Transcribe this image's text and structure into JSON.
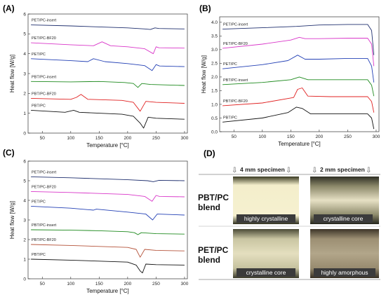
{
  "chart_data": [
    {
      "panel_label": "(A)",
      "type": "line",
      "xlabel": "Temperature [°C]",
      "ylabel": "Heat flow [W/g]",
      "xlim": [
        25,
        305
      ],
      "ylim": [
        0,
        6
      ],
      "xticks": [
        50,
        100,
        150,
        200,
        250,
        300
      ],
      "yticks": [
        0,
        1,
        2,
        3,
        4,
        5,
        6
      ],
      "series": [
        {
          "name": "PET/PC-insert",
          "color": "#1f2f6e",
          "x": [
            30,
            100,
            150,
            200,
            230,
            240,
            248,
            255,
            300
          ],
          "y": [
            5.45,
            5.4,
            5.35,
            5.3,
            5.25,
            5.22,
            5.3,
            5.27,
            5.25
          ]
        },
        {
          "name": "PET/PC-BF20",
          "color": "#d936c9",
          "x": [
            30,
            100,
            140,
            155,
            170,
            200,
            230,
            245,
            250,
            255,
            300
          ],
          "y": [
            4.55,
            4.45,
            4.4,
            4.6,
            4.4,
            4.35,
            4.25,
            4.0,
            4.35,
            4.3,
            4.28
          ]
        },
        {
          "name": "PET/PC",
          "color": "#2340b5",
          "x": [
            30,
            100,
            130,
            140,
            160,
            200,
            230,
            243,
            250,
            256,
            300
          ],
          "y": [
            3.75,
            3.65,
            3.6,
            3.75,
            3.6,
            3.5,
            3.4,
            3.15,
            3.45,
            3.38,
            3.35
          ]
        },
        {
          "name": "PBT/PC-insert",
          "color": "#1e8a1e",
          "x": [
            30,
            100,
            150,
            195,
            210,
            218,
            225,
            240,
            300
          ],
          "y": [
            2.6,
            2.58,
            2.6,
            2.55,
            2.5,
            2.3,
            2.5,
            2.45,
            2.4
          ]
        },
        {
          "name": "PBT/PC-BF20",
          "color": "#e02020",
          "x": [
            30,
            100,
            110,
            118,
            130,
            190,
            210,
            222,
            232,
            250,
            300
          ],
          "y": [
            1.75,
            1.7,
            1.8,
            1.95,
            1.7,
            1.65,
            1.55,
            1.1,
            1.6,
            1.55,
            1.5
          ]
        },
        {
          "name": "PBT/PC",
          "color": "#111111",
          "x": [
            30,
            90,
            105,
            115,
            190,
            210,
            222,
            228,
            236,
            250,
            300
          ],
          "y": [
            1.15,
            1.05,
            1.15,
            1.05,
            0.95,
            0.85,
            0.5,
            0.25,
            0.8,
            0.75,
            0.7
          ]
        }
      ]
    },
    {
      "panel_label": "(B)",
      "type": "line",
      "xlabel": "Temperature [°C]",
      "ylabel": "Heat flow [W/g]",
      "xlim": [
        25,
        305
      ],
      "ylim": [
        0,
        4.2
      ],
      "xticks": [
        50,
        100,
        150,
        200,
        250,
        300
      ],
      "yticks": [
        0.0,
        0.5,
        1.0,
        1.5,
        2.0,
        2.5,
        3.0,
        3.5,
        4.0
      ],
      "series": [
        {
          "name": "PET/PC-insert",
          "color": "#1f2f6e",
          "x": [
            30,
            100,
            160,
            200,
            250,
            285,
            292,
            296
          ],
          "y": [
            3.75,
            3.8,
            3.85,
            3.9,
            3.92,
            3.92,
            3.7,
            2.8
          ]
        },
        {
          "name": "PET/PC-BF20",
          "color": "#d936c9",
          "x": [
            30,
            100,
            150,
            165,
            175,
            200,
            250,
            285,
            292,
            296
          ],
          "y": [
            3.05,
            3.2,
            3.35,
            3.45,
            3.4,
            3.4,
            3.42,
            3.42,
            3.2,
            2.4
          ]
        },
        {
          "name": "PET/PC",
          "color": "#2340b5",
          "x": [
            30,
            100,
            145,
            162,
            175,
            200,
            250,
            285,
            292,
            296
          ],
          "y": [
            2.3,
            2.45,
            2.6,
            2.8,
            2.65,
            2.65,
            2.68,
            2.68,
            2.4,
            1.8
          ]
        },
        {
          "name": "PBT/PC-insert",
          "color": "#1e8a1e",
          "x": [
            30,
            100,
            150,
            165,
            180,
            220,
            285,
            292,
            296
          ],
          "y": [
            1.72,
            1.8,
            1.9,
            2.0,
            1.9,
            1.9,
            1.9,
            1.7,
            1.3
          ]
        },
        {
          "name": "PBT/PC-BF20",
          "color": "#e02020",
          "x": [
            30,
            100,
            155,
            162,
            170,
            180,
            220,
            285,
            292,
            296
          ],
          "y": [
            0.95,
            1.05,
            1.25,
            1.55,
            1.6,
            1.3,
            1.28,
            1.28,
            1.1,
            0.7
          ]
        },
        {
          "name": "PBT/PC",
          "color": "#111111",
          "x": [
            30,
            100,
            145,
            160,
            170,
            185,
            220,
            285,
            292,
            296
          ],
          "y": [
            0.35,
            0.5,
            0.7,
            0.9,
            0.85,
            0.65,
            0.65,
            0.65,
            0.5,
            0.1
          ]
        }
      ]
    },
    {
      "panel_label": "(C)",
      "type": "line",
      "xlabel": "Temperature [°C]",
      "ylabel": "Heat flow [W/g]",
      "xlim": [
        25,
        305
      ],
      "ylim": [
        0,
        6
      ],
      "xticks": [
        50,
        100,
        150,
        200,
        250,
        300
      ],
      "yticks": [
        0,
        1,
        2,
        3,
        4,
        5,
        6
      ],
      "series": [
        {
          "name": "PET/PC-insert",
          "color": "#1f2f6e",
          "x": [
            30,
            100,
            150,
            200,
            235,
            245,
            255,
            300
          ],
          "y": [
            5.2,
            5.15,
            5.1,
            5.05,
            5.0,
            4.95,
            5.02,
            5.0
          ]
        },
        {
          "name": "PET/PC-BF20",
          "color": "#d936c9",
          "x": [
            30,
            100,
            150,
            200,
            230,
            243,
            250,
            256,
            300
          ],
          "y": [
            4.45,
            4.4,
            4.35,
            4.3,
            4.2,
            3.95,
            4.25,
            4.2,
            4.18
          ]
        },
        {
          "name": "PET/PC",
          "color": "#2340b5",
          "x": [
            30,
            100,
            140,
            145,
            200,
            232,
            244,
            252,
            300
          ],
          "y": [
            3.7,
            3.6,
            3.5,
            3.55,
            3.4,
            3.3,
            3.0,
            3.3,
            3.25
          ]
        },
        {
          "name": "PBT/PC-insert",
          "color": "#1e8a1e",
          "x": [
            30,
            100,
            150,
            200,
            212,
            218,
            224,
            250,
            300
          ],
          "y": [
            2.5,
            2.48,
            2.45,
            2.4,
            2.35,
            2.25,
            2.35,
            2.3,
            2.28
          ]
        },
        {
          "name": "PBT/PC-BF20",
          "color": "#b5533a",
          "x": [
            30,
            100,
            150,
            200,
            215,
            222,
            230,
            250,
            300
          ],
          "y": [
            1.75,
            1.7,
            1.65,
            1.6,
            1.5,
            1.1,
            1.5,
            1.45,
            1.42
          ]
        },
        {
          "name": "PBT/PC",
          "color": "#111111",
          "x": [
            30,
            100,
            150,
            200,
            215,
            222,
            226,
            232,
            250,
            300
          ],
          "y": [
            1.0,
            0.95,
            0.9,
            0.85,
            0.7,
            0.4,
            0.3,
            0.75,
            0.72,
            0.7
          ]
        }
      ]
    }
  ],
  "panel_d": {
    "panel_label": "(D)",
    "header_4mm": "4 mm specimen",
    "header_2mm": "2 mm specimen",
    "rows": [
      {
        "label_line1": "PBT/PC",
        "label_line2": "blend",
        "caption_4mm": "highly crystalline",
        "caption_2mm": "crystalline core"
      },
      {
        "label_line1": "PET/PC",
        "label_line2": "blend",
        "caption_4mm": "crystalline core",
        "caption_2mm": "highly amorphous"
      }
    ]
  }
}
